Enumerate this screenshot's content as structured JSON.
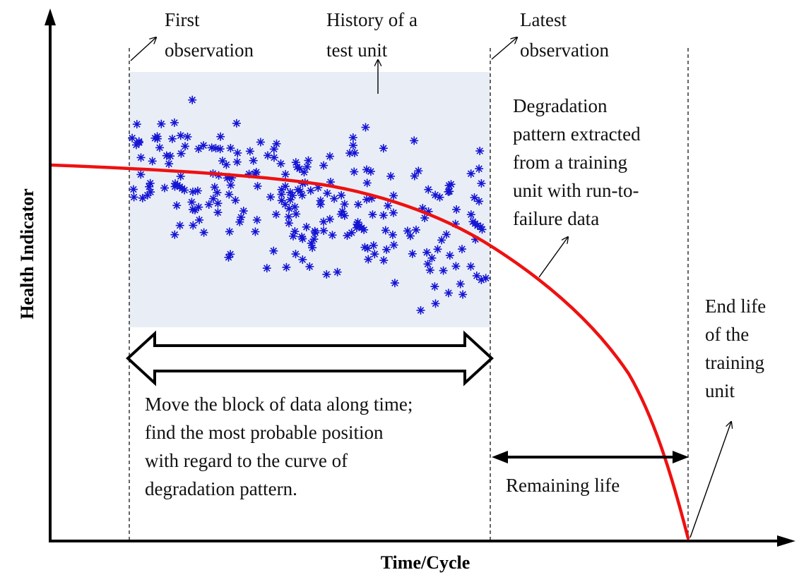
{
  "axes": {
    "xlabel": "Time/Cycle",
    "ylabel": "Health Indicator"
  },
  "labels": {
    "first_observation": [
      "First",
      "observation"
    ],
    "history": [
      "History of a",
      "test unit"
    ],
    "latest_observation": [
      "Latest",
      "observation"
    ],
    "degradation": [
      "Degradation",
      "pattern extracted",
      "from a training",
      "unit with run-to-",
      "failure data"
    ],
    "end_life": [
      "End life",
      "of the",
      "training",
      "unit"
    ],
    "move_block": [
      "Move the block of data along time;",
      "find the most probable position",
      "with regard to the curve of",
      "degradation pattern."
    ],
    "remaining_life": "Remaining life"
  },
  "colors": {
    "curve": "#ee1111",
    "points": "#1414d4",
    "block_fill": "#e9eef6",
    "axis": "#000000"
  },
  "scatter_marker": "asterisk"
}
